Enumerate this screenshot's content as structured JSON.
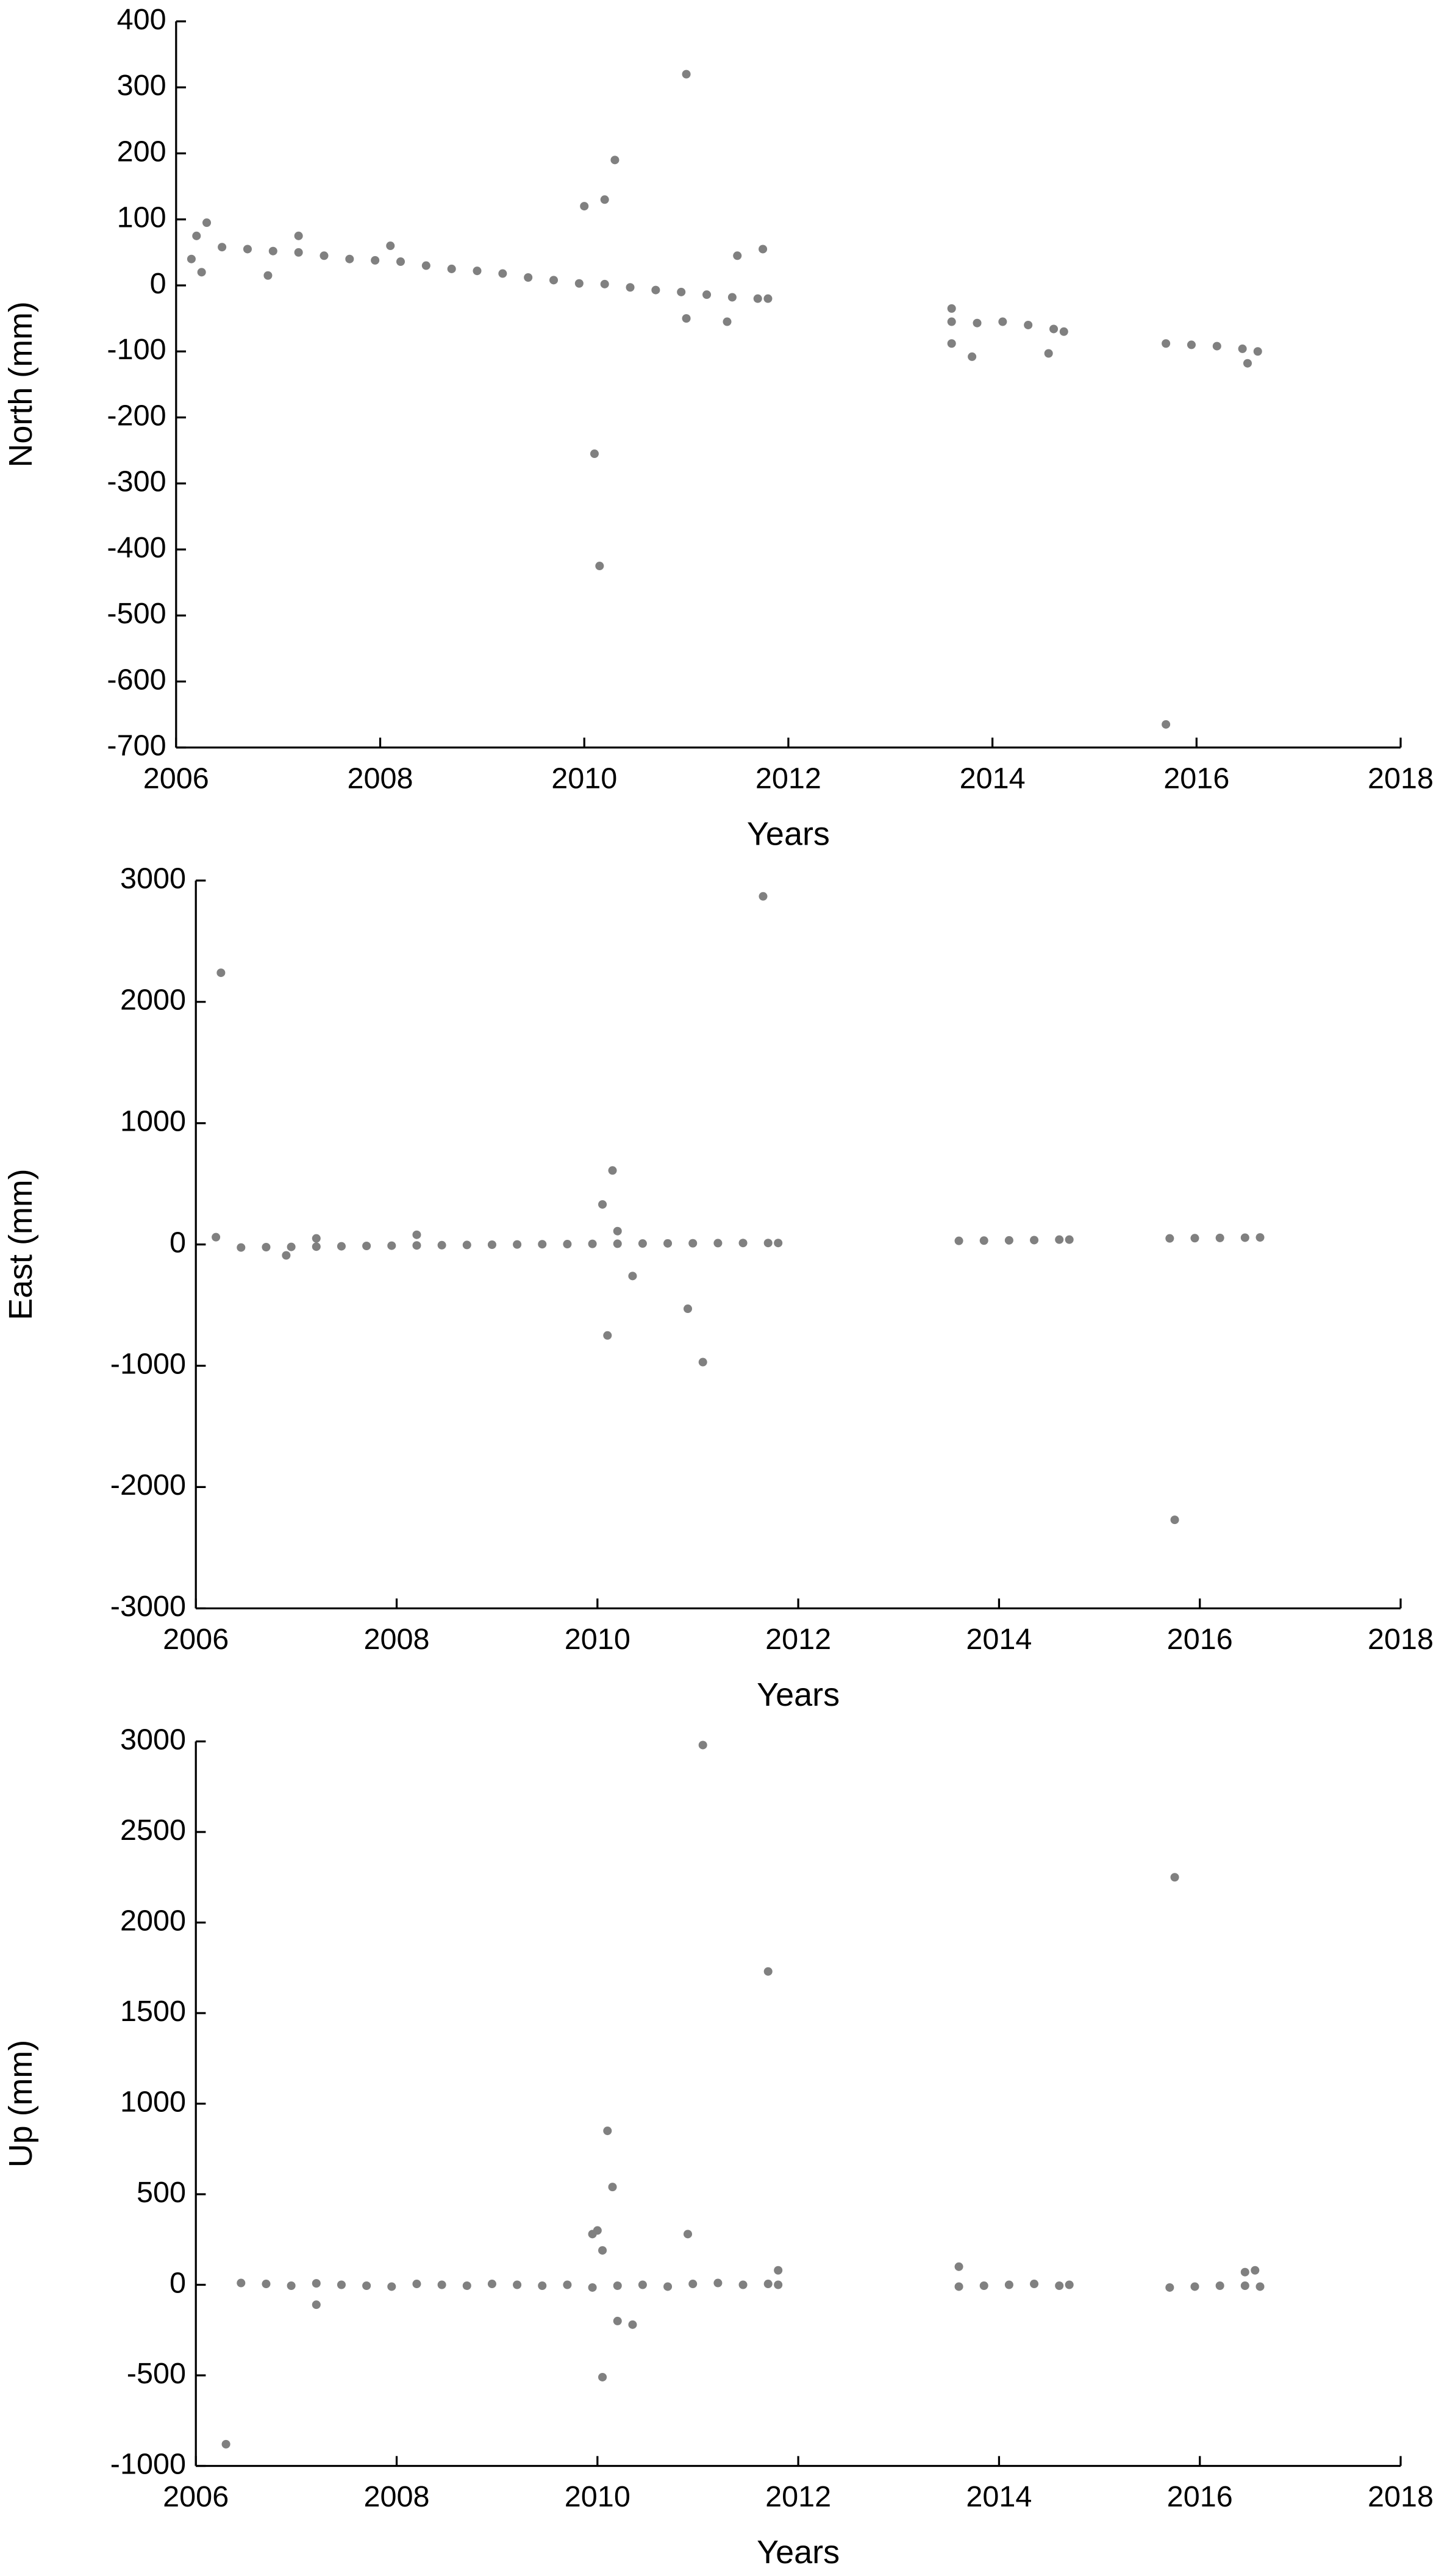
{
  "chart_data": [
    {
      "type": "scatter",
      "x_label": "Years",
      "y_label": "North (mm)",
      "color": "#808080",
      "xlim": [
        2006,
        2018
      ],
      "xticks": [
        2006,
        2008,
        2010,
        2012,
        2014,
        2016,
        2018
      ],
      "ylim": [
        -700,
        400
      ],
      "yticks": [
        -700,
        -600,
        -500,
        -400,
        -300,
        -200,
        -100,
        0,
        100,
        200,
        300,
        400
      ],
      "x": [
        2006.45,
        2006.7,
        2006.95,
        2007.2,
        2007.45,
        2007.7,
        2007.95,
        2008.2,
        2008.45,
        2008.7,
        2008.95,
        2009.2,
        2009.45,
        2009.7,
        2009.95,
        2010.2,
        2010.45,
        2010.7,
        2010.95,
        2011.2,
        2011.45,
        2011.7,
        2011.8,
        2013.6,
        2013.85,
        2014.1,
        2014.35,
        2014.6,
        2014.7,
        2015.7,
        2015.95,
        2016.2,
        2016.45,
        2016.6,
        2006.15,
        2006.2,
        2006.25,
        2006.3,
        2006.9,
        2007.2,
        2008.1,
        2010.0,
        2010.1,
        2010.15,
        2010.2,
        2010.3,
        2011.0,
        2011.0,
        2011.4,
        2011.5,
        2011.75,
        2013.6,
        2013.6,
        2013.8,
        2014.55,
        2015.7,
        2016.5
      ],
      "y": [
        58,
        55,
        52,
        50,
        45,
        40,
        38,
        36,
        30,
        25,
        22,
        18,
        12,
        8,
        3,
        2,
        -3,
        -7,
        -10,
        -14,
        -18,
        -20,
        -20,
        -55,
        -57,
        -55,
        -60,
        -66,
        -70,
        -88,
        -90,
        -92,
        -96,
        -100,
        40,
        75,
        20,
        95,
        15,
        75,
        60,
        120,
        -255,
        -425,
        130,
        190,
        320,
        -50,
        -55,
        45,
        55,
        -35,
        -88,
        -108,
        -103,
        -665,
        -118
      ]
    },
    {
      "type": "scatter",
      "x_label": "Years",
      "y_label": "East (mm)",
      "color": "#808080",
      "xlim": [
        2006,
        2018
      ],
      "xticks": [
        2006,
        2008,
        2010,
        2012,
        2014,
        2016,
        2018
      ],
      "ylim": [
        -3000,
        3000
      ],
      "yticks": [
        -3000,
        -2000,
        -1000,
        0,
        1000,
        2000,
        3000
      ],
      "x": [
        2006.45,
        2006.7,
        2006.95,
        2007.2,
        2007.45,
        2007.7,
        2007.95,
        2008.2,
        2008.45,
        2008.7,
        2008.95,
        2009.2,
        2009.45,
        2009.7,
        2009.95,
        2010.2,
        2010.45,
        2010.7,
        2010.95,
        2011.2,
        2011.45,
        2011.7,
        2011.8,
        2013.6,
        2013.85,
        2014.1,
        2014.35,
        2014.6,
        2014.7,
        2015.7,
        2015.95,
        2016.2,
        2016.45,
        2016.6,
        2006.25,
        2011.65,
        2010.05,
        2010.15,
        2010.2,
        2010.35,
        2010.1,
        2010.9,
        2011.05,
        2015.75,
        2006.2,
        2006.9,
        2008.2,
        2007.2
      ],
      "y": [
        -25,
        -22,
        -20,
        -18,
        -15,
        -12,
        -10,
        -8,
        -6,
        -4,
        -2,
        0,
        2,
        3,
        5,
        6,
        8,
        9,
        10,
        11,
        12,
        12,
        12,
        30,
        32,
        34,
        36,
        40,
        40,
        50,
        52,
        54,
        56,
        58,
        2240,
        2870,
        330,
        610,
        110,
        -260,
        -750,
        -530,
        -970,
        -2270,
        60,
        -90,
        80,
        50
      ]
    },
    {
      "type": "scatter",
      "x_label": "Years",
      "y_label": "Up (mm)",
      "color": "#808080",
      "xlim": [
        2006,
        2018
      ],
      "xticks": [
        2006,
        2008,
        2010,
        2012,
        2014,
        2016,
        2018
      ],
      "ylim": [
        -1000,
        3000
      ],
      "yticks": [
        -1000,
        -500,
        0,
        500,
        1000,
        1500,
        2000,
        2500,
        3000
      ],
      "x": [
        2006.45,
        2006.7,
        2006.95,
        2007.2,
        2007.45,
        2007.7,
        2007.95,
        2008.2,
        2008.45,
        2008.7,
        2008.95,
        2009.2,
        2009.45,
        2009.7,
        2009.95,
        2010.2,
        2010.45,
        2010.7,
        2010.95,
        2011.2,
        2011.45,
        2011.7,
        2011.8,
        2013.6,
        2013.85,
        2014.1,
        2014.35,
        2014.6,
        2014.7,
        2015.7,
        2015.95,
        2016.2,
        2016.45,
        2016.6,
        2006.3,
        2011.05,
        2011.7,
        2015.75,
        2010.1,
        2010.15,
        2010.05,
        2010.2,
        2010.35,
        2009.95,
        2010.0,
        2010.05,
        2010.9,
        2007.2,
        2013.6,
        2016.45,
        2016.55,
        2011.8
      ],
      "y": [
        10,
        5,
        -5,
        8,
        0,
        -5,
        -10,
        5,
        0,
        -5,
        5,
        0,
        -5,
        0,
        -15,
        -5,
        0,
        -10,
        5,
        10,
        0,
        5,
        0,
        -10,
        -5,
        0,
        5,
        -5,
        0,
        -15,
        -10,
        -5,
        -5,
        -10,
        -880,
        2980,
        1730,
        2250,
        850,
        540,
        -510,
        -200,
        -220,
        280,
        300,
        190,
        280,
        -110,
        100,
        70,
        80,
        80
      ]
    }
  ]
}
